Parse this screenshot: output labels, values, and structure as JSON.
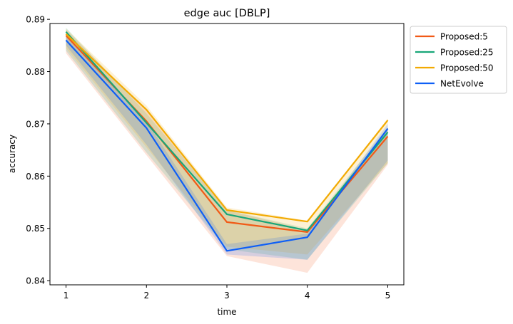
{
  "chart_data": {
    "type": "line",
    "title": "edge auc [DBLP]",
    "xlabel": "time",
    "ylabel": "accuracy",
    "x": [
      1,
      2,
      3,
      4,
      5
    ],
    "xlim": [
      0.8,
      5.2
    ],
    "ylim": [
      0.8392,
      0.8892
    ],
    "yticks": [
      0.84,
      0.85,
      0.86,
      0.87,
      0.88,
      0.89
    ],
    "ytick_labels": [
      "0.84",
      "0.85",
      "0.86",
      "0.87",
      "0.88",
      "0.89"
    ],
    "xtick_labels": [
      "1",
      "2",
      "3",
      "4",
      "5"
    ],
    "legend_position": "outside-top-right",
    "grid": false,
    "series": [
      {
        "name": "Proposed:5",
        "color": "#f15a16",
        "values": [
          0.8869,
          0.8705,
          0.8512,
          0.8493,
          0.8676
        ],
        "band_low": [
          0.8835,
          0.864,
          0.8447,
          0.8415,
          0.8622
        ],
        "band_high": [
          0.888,
          0.8725,
          0.8535,
          0.8497,
          0.869
        ]
      },
      {
        "name": "Proposed:25",
        "color": "#18a678",
        "values": [
          0.8876,
          0.8702,
          0.8527,
          0.8496,
          0.8684
        ],
        "band_low": [
          0.884,
          0.8645,
          0.846,
          0.844,
          0.8625
        ],
        "band_high": [
          0.8884,
          0.872,
          0.8535,
          0.85,
          0.8694
        ]
      },
      {
        "name": "Proposed:50",
        "color": "#f2aa02",
        "values": [
          0.8872,
          0.8727,
          0.8535,
          0.8513,
          0.8707
        ],
        "band_low": [
          0.8845,
          0.8655,
          0.8465,
          0.845,
          0.8625
        ],
        "band_high": [
          0.8882,
          0.8735,
          0.854,
          0.8515,
          0.871
        ]
      },
      {
        "name": "NetEvolve",
        "color": "#0e5ff6",
        "values": [
          0.886,
          0.8692,
          0.8457,
          0.8483,
          0.8691
        ],
        "band_low": [
          0.885,
          0.866,
          0.845,
          0.844,
          0.863
        ],
        "band_high": [
          0.887,
          0.8705,
          0.847,
          0.849,
          0.87
        ]
      }
    ]
  }
}
